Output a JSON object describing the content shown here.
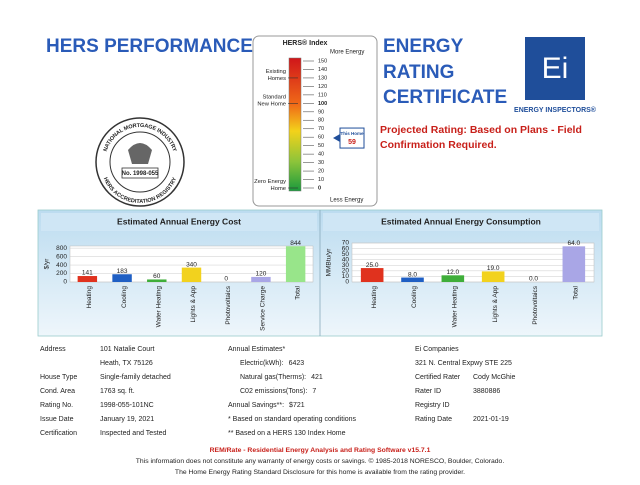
{
  "header": {
    "title_left": "HERS PERFORMANCE",
    "title_right": [
      "ENERGY",
      "RATING",
      "CERTIFICATE"
    ],
    "logo_text": "Ei",
    "logo_caption": "ENERGY INSPECTORS®",
    "notice": [
      "Projected Rating: Based on Plans - Field",
      "Confirmation Required."
    ]
  },
  "seal": {
    "top_text": "NATIONAL MORTGAGE INDUSTRY",
    "bottom_text": "HERS ACCREDITATION REGISTRY",
    "number": "No. 1998-055"
  },
  "hers_index": {
    "title": "HERS® Index",
    "top_label": "More Energy",
    "bottom_label": "Less Energy",
    "ticks": [
      150,
      140,
      130,
      120,
      110,
      100,
      90,
      80,
      70,
      60,
      50,
      40,
      30,
      20,
      10,
      0
    ],
    "markers": [
      {
        "lines": [
          "Existing",
          "Homes"
        ],
        "value": 130
      },
      {
        "lines": [
          "Standard",
          "New Home"
        ],
        "value": 100
      },
      {
        "lines": [
          "Zero Energy",
          "Home"
        ],
        "value": 0
      }
    ],
    "this_home": {
      "label": "This Home",
      "value": 59
    }
  },
  "chart_data": [
    {
      "type": "bar",
      "title": "Estimated Annual Energy Cost",
      "ylabel": "$/yr",
      "categories": [
        "Heating",
        "Cooling",
        "Water Heating",
        "Lights & App",
        "Photovoltaics",
        "Service Charge",
        "Total"
      ],
      "values": [
        141,
        183,
        60,
        340,
        0,
        120,
        844
      ],
      "colors": [
        "#e0321e",
        "#1f5fc4",
        "#3fae3a",
        "#f2d21e",
        "#9a9a9a",
        "#a9a6e6",
        "#98e58a"
      ],
      "ylim": [
        0,
        850
      ],
      "yticks": [
        0,
        200,
        400,
        600,
        800
      ],
      "grid": true
    },
    {
      "type": "bar",
      "title": "Estimated Annual Energy Consumption",
      "ylabel": "MMBtu/yr",
      "categories": [
        "Heating",
        "Cooling",
        "Water Heating",
        "Lights & App",
        "Photovoltaics",
        "Total"
      ],
      "values": [
        25,
        8,
        12,
        19,
        0,
        64
      ],
      "value_labels": [
        "25.0",
        "8.0",
        "12.0",
        "19.0",
        "0.0",
        "64.0"
      ],
      "colors": [
        "#e0321e",
        "#1f5fc4",
        "#3fae3a",
        "#f2d21e",
        "#9a9a9a",
        "#a9a6e6"
      ],
      "ylim": [
        0,
        70
      ],
      "yticks": [
        0,
        10,
        20,
        30,
        40,
        50,
        60,
        70
      ],
      "grid": true
    }
  ],
  "info": {
    "left": [
      {
        "label": "Address",
        "value": "101 Natalie Court"
      },
      {
        "value": "Heath, TX 75126"
      },
      {
        "label": "House Type",
        "value": "Single-family detached"
      },
      {
        "label": "Cond. Area",
        "value": "1763 sq. ft."
      },
      {
        "label": "Rating No.",
        "value": "1998-055-101NC"
      },
      {
        "label": "Issue Date",
        "value": "January 19, 2021"
      },
      {
        "label": "Certification",
        "value": "Inspected and Tested"
      }
    ],
    "middle": [
      {
        "label": "Annual Estimates*"
      },
      {
        "label": "Electric(kWh):",
        "value": "6423",
        "indent": true
      },
      {
        "label": "Natural gas(Therms):",
        "value": "421",
        "indent": true
      },
      {
        "label": "C02 emissions(Tons):",
        "value": "7",
        "indent": true
      },
      {
        "label": "Annual Savings**:",
        "value": "$721"
      },
      {
        "label": "* Based on standard operating conditions"
      },
      {
        "label": "** Based on a HERS 130 Index Home"
      }
    ],
    "right": [
      {
        "label": "Ei Companies"
      },
      {
        "label": "321 N. Central Expwy STE 225"
      },
      {
        "label": "Certified Rater",
        "value": "Cody McGhie"
      },
      {
        "label": "Rater ID",
        "value": "3880886"
      },
      {
        "label": "Registry ID"
      },
      {
        "label": "Rating Date",
        "value": "2021-01-19"
      }
    ]
  },
  "footer": {
    "software": "REM/Rate - Residential Energy Analysis and Rating Software v15.7.1",
    "lines": [
      "This information does not constitute any warranty of energy costs or savings. © 1985-2018 NORESCO, Boulder, Colorado.",
      "The Home Energy Rating Standard Disclosure for this home is available from the rating provider."
    ]
  }
}
